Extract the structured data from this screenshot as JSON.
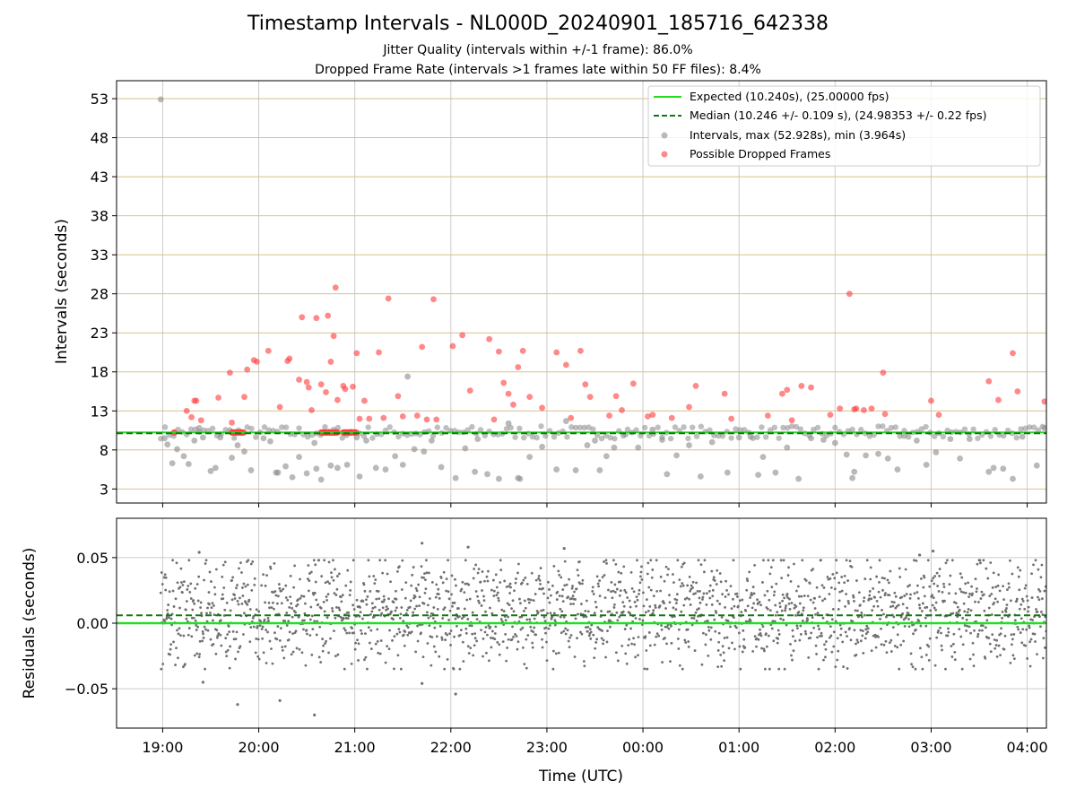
{
  "page": {
    "title": "Timestamp Intervals - NL000D_20240901_185716_642338",
    "subtitle_1": "Jitter Quality (intervals within +/-1 frame): 86.0%",
    "subtitle_2": "Dropped Frame Rate (intervals >1 frames late within 50 FF files): 8.4%"
  },
  "colors": {
    "expected": "#22dd22",
    "median": "#117711",
    "intervals": "#8a8a8a",
    "dropped": "#ff3b3b",
    "hgrid": "#d9c089",
    "vgrid": "#cccccc",
    "residuals": "#707070"
  },
  "chart_data": [
    {
      "type": "scatter",
      "panel": "intervals",
      "ylabel": "Intervals (seconds)",
      "xlabel": "",
      "xlim_hours": [
        18.52,
        28.2
      ],
      "ylim": [
        1.2,
        55.3
      ],
      "yticks": [
        3,
        8,
        13,
        18,
        23,
        28,
        33,
        38,
        43,
        48,
        53
      ],
      "ytick_labels": [
        "3",
        "8",
        "13",
        "18",
        "23",
        "28",
        "33",
        "38",
        "43",
        "48",
        "53"
      ],
      "grid": "horizontal lines at y ticks (tan), vertical lines at hours (gray)",
      "expected_value": 10.24,
      "median_value": 10.246,
      "legend_position": "top-right",
      "legend": [
        "Expected (10.240s), (25.00000 fps)",
        "Median (10.246 +/- 0.109 s), (24.98353 +/- 0.22 fps)",
        "Intervals, max (52.928s), min (3.964s)",
        "Possible Dropped Frames"
      ],
      "series": [
        {
          "name": "Possible Dropped Frames",
          "x_hours": [
            19.25,
            19.3,
            19.33,
            19.35,
            19.4,
            19.58,
            19.7,
            19.72,
            19.85,
            19.88,
            19.95,
            19.98,
            20.1,
            20.22,
            20.3,
            20.32,
            20.42,
            20.45,
            20.5,
            20.52,
            20.55,
            20.6,
            20.65,
            20.7,
            20.72,
            20.75,
            20.78,
            20.8,
            20.82,
            20.88,
            20.9,
            20.98,
            21.02,
            21.05,
            21.1,
            21.15,
            21.25,
            21.3,
            21.35,
            21.45,
            21.5,
            21.65,
            21.7,
            21.75,
            21.82,
            21.85,
            22.02,
            22.12,
            22.2,
            22.4,
            22.45,
            22.5,
            22.55,
            22.6,
            22.65,
            22.7,
            22.75,
            22.82,
            22.95,
            23.1,
            23.2,
            23.25,
            23.35,
            23.4,
            23.45,
            23.65,
            23.72,
            23.78,
            23.9,
            24.05,
            24.1,
            24.3,
            24.48,
            24.55,
            24.85,
            24.92,
            25.3,
            25.45,
            25.5,
            25.55,
            25.65,
            25.75,
            25.95,
            26.05,
            26.15,
            26.2,
            26.22,
            26.3,
            26.38,
            26.5,
            26.52,
            27.0,
            27.08,
            27.6,
            27.7,
            27.85,
            27.9,
            28.18
          ],
          "y": [
            13,
            12.2,
            14.3,
            14.3,
            11.8,
            14.7,
            17.9,
            11.5,
            14.8,
            18.3,
            19.5,
            19.3,
            20.7,
            13.5,
            19.4,
            19.7,
            17,
            25,
            16.7,
            16,
            13.1,
            24.9,
            16.4,
            15.4,
            25.2,
            19.3,
            22.6,
            28.8,
            14.4,
            16.2,
            15.8,
            16.1,
            20.4,
            12,
            14.3,
            12,
            20.5,
            12.1,
            27.4,
            14.9,
            12.3,
            12.4,
            21.2,
            11.9,
            27.3,
            11.9,
            21.3,
            22.7,
            15.6,
            22.2,
            11.9,
            20.6,
            16.6,
            15.2,
            13.8,
            18.6,
            20.7,
            14.8,
            13.4,
            20.5,
            18.9,
            12.1,
            20.7,
            16.4,
            14.8,
            12.4,
            14.9,
            13.1,
            16.5,
            12.3,
            12.5,
            12.1,
            13.5,
            16.2,
            15.2,
            12,
            12.4,
            15.2,
            15.7,
            11.8,
            16.2,
            16,
            12.5,
            13.3,
            28,
            13.2,
            13.3,
            13.1,
            13.3,
            17.9,
            12.6,
            14.3,
            12.5,
            16.8,
            14.4,
            20.4,
            15.5,
            14.2
          ]
        },
        {
          "name": "Intervals, max (52.928s), min (3.964s)",
          "x_hours": [
            18.98,
            19.02,
            19.05,
            19.15,
            19.22,
            19.27,
            19.33,
            19.38,
            19.42,
            19.5,
            19.6,
            19.72,
            19.78,
            19.85,
            19.92,
            20.05,
            20.12,
            20.2,
            20.28,
            20.35,
            20.42,
            20.5,
            20.58,
            20.65,
            20.75,
            20.82,
            20.92,
            21.02,
            21.12,
            21.22,
            21.32,
            21.42,
            21.55,
            21.62,
            21.72,
            21.8,
            21.9,
            22.05,
            22.15,
            22.28,
            22.38,
            22.5,
            22.6,
            22.7,
            22.82,
            22.95,
            23.1,
            23.2,
            23.3,
            23.42,
            23.5,
            23.62,
            23.7,
            23.82,
            23.95,
            24.1,
            24.2,
            24.35,
            24.48,
            24.6,
            24.72,
            24.88,
            25.0,
            25.12,
            25.25,
            25.38,
            25.5,
            25.62,
            25.75,
            25.88,
            26.0,
            26.12,
            26.2,
            26.32,
            26.45,
            26.55,
            26.72,
            26.85,
            26.95,
            27.05,
            27.2,
            27.4,
            27.6,
            27.75,
            27.85,
            27.95,
            28.1,
            28.18,
            19.1,
            19.55,
            20.18,
            20.6,
            21.05,
            21.5,
            22.25,
            22.72,
            23.55,
            24.25,
            25.2,
            26.18,
            26.65,
            27.3,
            27.65
          ],
          "y": [
            52.9,
            9.5,
            8.7,
            8.1,
            7.2,
            6.2,
            9.2,
            10.8,
            9.6,
            5.3,
            9.6,
            7,
            8.6,
            7.8,
            5.4,
            9.5,
            9.1,
            5.1,
            5.9,
            4.5,
            7.1,
            5,
            8.9,
            4.2,
            6,
            5.7,
            6.1,
            9.6,
            9.2,
            5.7,
            5.5,
            7.2,
            17.4,
            8.1,
            7.8,
            9.2,
            5.8,
            4.4,
            8.2,
            9.4,
            4.9,
            4.3,
            11.4,
            4.4,
            7.1,
            8.4,
            5.5,
            11.7,
            5.4,
            8.6,
            9.2,
            7.2,
            8.3,
            10,
            8.3,
            10.6,
            9.3,
            7.3,
            8.6,
            4.6,
            9,
            5.1,
            9.6,
            9.7,
            7.1,
            5.1,
            8.3,
            4.3,
            9.5,
            9.3,
            8.9,
            7.4,
            5.2,
            7.3,
            7.5,
            6.9,
            9.8,
            9.2,
            6.1,
            7.7,
            9.4,
            9.4,
            5.2,
            5.6,
            4.3,
            9.7,
            6,
            10.8,
            6.3,
            5.7,
            5.1,
            5.6,
            4.6,
            6.1,
            5.2,
            4.3,
            5.4,
            4.9,
            4.8,
            4.4,
            5.5,
            6.9,
            5.7
          ]
        }
      ]
    },
    {
      "type": "scatter",
      "panel": "residuals",
      "ylabel": "Residuals (seconds)",
      "xlabel": "Time (UTC)",
      "xlim_hours": [
        18.52,
        28.2
      ],
      "ylim": [
        -0.08,
        0.08
      ],
      "yticks": [
        0.05,
        0.0,
        -0.05
      ],
      "ytick_labels": [
        "0.05",
        "0.00",
        "−0.05"
      ],
      "xticks_hours": [
        19,
        20,
        21,
        22,
        23,
        24,
        25,
        26,
        27,
        28
      ],
      "xtick_labels": [
        "19:00",
        "20:00",
        "21:00",
        "22:00",
        "23:00",
        "00:00",
        "01:00",
        "02:00",
        "03:00",
        "04:00"
      ],
      "expected_value": 0.0,
      "median_value": 0.006,
      "distribution": "dense band of points roughly between -0.03 and 0.045 s, centered near 0.01 s",
      "outliers": [
        {
          "x_hour": 19.78,
          "y": -0.062
        },
        {
          "x_hour": 20.22,
          "y": -0.059
        },
        {
          "x_hour": 20.58,
          "y": -0.07
        },
        {
          "x_hour": 22.05,
          "y": -0.054
        },
        {
          "x_hour": 21.7,
          "y": -0.046
        },
        {
          "x_hour": 19.42,
          "y": -0.045
        },
        {
          "x_hour": 19.38,
          "y": 0.054
        },
        {
          "x_hour": 21.7,
          "y": 0.061
        },
        {
          "x_hour": 22.18,
          "y": 0.058
        },
        {
          "x_hour": 23.18,
          "y": 0.057
        },
        {
          "x_hour": 26.88,
          "y": 0.052
        },
        {
          "x_hour": 27.02,
          "y": 0.055
        }
      ]
    }
  ]
}
